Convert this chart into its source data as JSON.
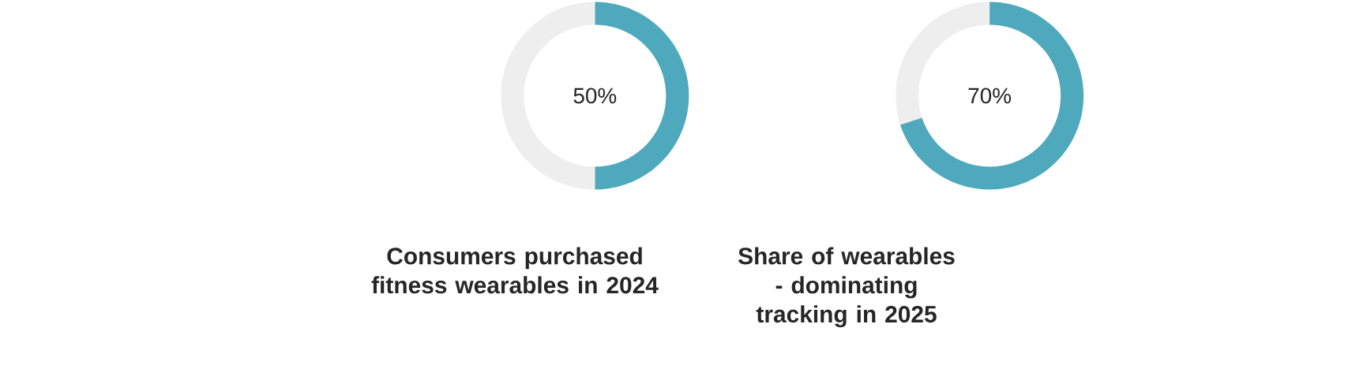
{
  "chart_data": [
    {
      "type": "donut",
      "title": "Consumers purchased fitness wearables in 2024",
      "categories": [
        null,
        null
      ],
      "values": [
        50,
        50
      ],
      "colors": [
        "#4fa9bd",
        "#eeeeee"
      ],
      "value_labels": [
        "50%",
        null
      ]
    },
    {
      "type": "donut",
      "title": "Share of wearables - dominating tracking in 2025",
      "categories": [
        null,
        null
      ],
      "values": [
        70,
        30
      ],
      "colors": [
        "#4fa9bd",
        "#eeeeee"
      ],
      "value_labels": [
        "70%",
        null
      ]
    }
  ]
}
